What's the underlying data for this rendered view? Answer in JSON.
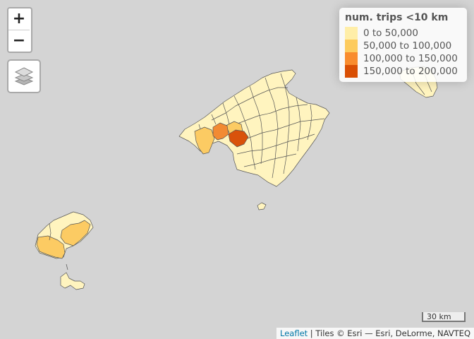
{
  "controls": {
    "zoom_in_label": "+",
    "zoom_out_label": "−"
  },
  "legend": {
    "title": "num. trips <10 km",
    "items": [
      {
        "label": "0 to 50,000",
        "color": "#ffffcc"
      },
      {
        "label": "50,000 to 100,000",
        "color": "#fecc5c"
      },
      {
        "label": "100,000 to 150,000",
        "color": "#fd8d3c"
      },
      {
        "label": "150,000 to 200,000",
        "color": "#e34a00"
      }
    ]
  },
  "scale": {
    "label": "30 km"
  },
  "attribution": {
    "link_text": "Leaflet",
    "separator": " | ",
    "tiles_text": "Tiles © Esri — Esri, DeLorme, NAVTEQ"
  },
  "colors": {
    "background": "#d4d4d4",
    "border": "#555555",
    "class_1": "#fff4bf",
    "class_2": "#fccb63",
    "class_3": "#f28a33",
    "class_4": "#d9520b"
  }
}
